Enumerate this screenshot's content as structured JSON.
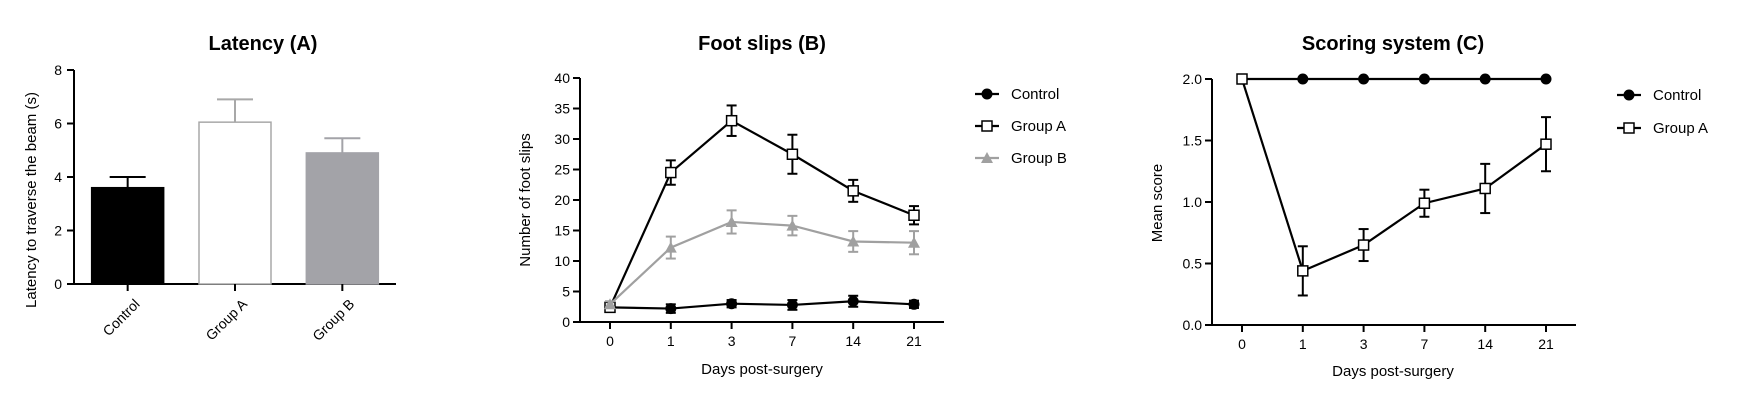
{
  "colors": {
    "black": "#000000",
    "white": "#ffffff",
    "gray": "#a3a3a8",
    "light_gray": "#a0a0a0"
  },
  "chart_data": [
    {
      "type": "bar",
      "title": "Latency (A)",
      "xlabel": "",
      "ylabel": "Latency to traverse the beam (s)",
      "ylim": [
        0,
        8
      ],
      "yticks": [
        "0",
        "2",
        "4",
        "6",
        "8"
      ],
      "categories": [
        "Control",
        "Group A",
        "Group B"
      ],
      "values": [
        3.6,
        6.05,
        4.9
      ],
      "errors": [
        0.4,
        0.85,
        0.55
      ],
      "bar_colors": [
        "#000000",
        "#ffffff",
        "#a3a3a8"
      ],
      "bar_edge_colors": [
        "#000000",
        "#a8a8a8",
        "#a3a3a8"
      ],
      "grid": false
    },
    {
      "type": "line",
      "title": "Foot slips (B)",
      "xlabel": "Days post-surgery",
      "ylabel": "Number of foot slips",
      "ylim": [
        0,
        40
      ],
      "yticks": [
        "0",
        "5",
        "10",
        "15",
        "20",
        "25",
        "30",
        "35",
        "40"
      ],
      "categories": [
        "0",
        "1",
        "3",
        "7",
        "14",
        "21"
      ],
      "series": [
        {
          "name": "Control",
          "values": [
            2.4,
            2.2,
            3.0,
            2.8,
            3.4,
            2.9
          ],
          "errors": [
            0.5,
            0.7,
            0.6,
            0.8,
            0.9,
            0.6
          ],
          "color": "#000000",
          "marker": "filled-circle"
        },
        {
          "name": "Group A",
          "values": [
            2.4,
            24.5,
            33.0,
            27.5,
            21.5,
            17.5
          ],
          "errors": [
            0.5,
            2.0,
            2.5,
            3.2,
            1.8,
            1.5
          ],
          "color": "#000000",
          "marker": "open-square"
        },
        {
          "name": "Group B",
          "values": [
            2.9,
            12.2,
            16.4,
            15.8,
            13.2,
            13.0
          ],
          "errors": [
            0.5,
            1.8,
            1.9,
            1.6,
            1.7,
            1.9
          ],
          "color": "#a0a0a0",
          "marker": "filled-triangle"
        }
      ],
      "legend_position": "right",
      "grid": false
    },
    {
      "type": "line",
      "title": "Scoring system  (C)",
      "xlabel": "Days post-surgery",
      "ylabel": "Mean score",
      "ylim": [
        0,
        2
      ],
      "yticks": [
        "0.0",
        "0.5",
        "1.0",
        "1.5",
        "2.0"
      ],
      "categories": [
        "0",
        "1",
        "3",
        "7",
        "14",
        "21"
      ],
      "series": [
        {
          "name": "Control",
          "values": [
            2.0,
            2.0,
            2.0,
            2.0,
            2.0,
            2.0
          ],
          "errors": [
            0,
            0,
            0,
            0,
            0,
            0
          ],
          "color": "#000000",
          "marker": "filled-circle"
        },
        {
          "name": "Group A",
          "values": [
            2.0,
            0.44,
            0.65,
            0.99,
            1.11,
            1.47
          ],
          "errors": [
            0,
            0.2,
            0.13,
            0.11,
            0.2,
            0.22
          ],
          "color": "#000000",
          "marker": "open-square"
        }
      ],
      "legend_position": "right",
      "grid": false
    }
  ]
}
